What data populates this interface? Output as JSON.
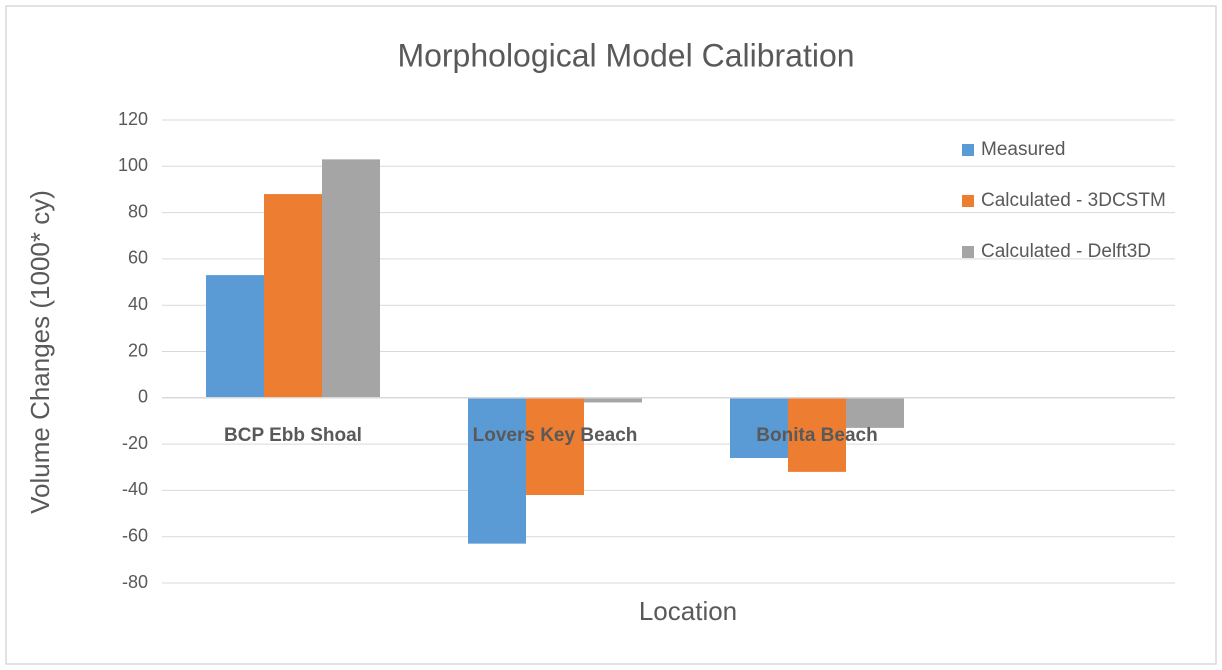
{
  "chart_data": {
    "type": "bar",
    "title": "Morphological Model Calibration",
    "x_axis_label": "Location",
    "y_axis_label": "Volume Changes (1000* cy)",
    "categories": [
      "BCP Ebb Shoal",
      "Lovers Key Beach",
      "Bonita Beach"
    ],
    "series": [
      {
        "name": "Measured",
        "color": "#5b9bd5",
        "values": [
          53,
          -63,
          -26
        ]
      },
      {
        "name": "Calculated - 3DCSTM",
        "color": "#ed7d31",
        "values": [
          88,
          -42,
          -32
        ]
      },
      {
        "name": "Calculated - Delft3D",
        "color": "#a5a5a5",
        "values": [
          103,
          -2,
          -13
        ]
      }
    ],
    "ylim": [
      -80,
      120
    ],
    "yticks": [
      -80,
      -60,
      -40,
      -20,
      0,
      20,
      40,
      60,
      80,
      100,
      120
    ],
    "grid": true,
    "legend": "right"
  }
}
